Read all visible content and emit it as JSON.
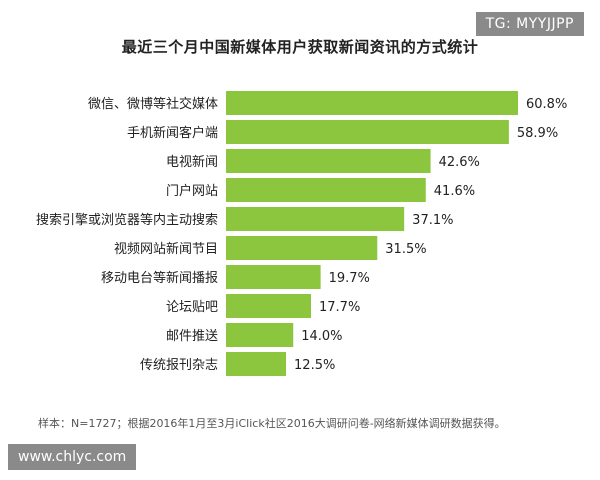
{
  "chart_data": {
    "type": "bar",
    "orientation": "horizontal",
    "title": "最近三个月中国新媒体用户获取新闻资讯的方式统计",
    "categories": [
      "微信、微博等社交媒体",
      "手机新闻客户端",
      "电视新闻",
      "门户网站",
      "搜索引擎或浏览器等内主动搜索",
      "视频网站新闻节目",
      "移动电台等新闻播报",
      "论坛贴吧",
      "邮件推送",
      "传统报刊杂志"
    ],
    "values": [
      60.8,
      58.9,
      42.6,
      41.6,
      37.1,
      31.5,
      19.7,
      17.7,
      14.0,
      12.5
    ],
    "value_labels": [
      "60.8%",
      "58.9%",
      "42.6%",
      "41.6%",
      "37.1%",
      "31.5%",
      "19.7%",
      "17.7%",
      "14.0%",
      "12.5%"
    ],
    "bar_color": "#8cc63f",
    "xlim": [
      0,
      60.8
    ]
  },
  "footnote": "样本：N=1727；根据2016年1月至3月iClick社区2016大调研问卷-网络新媒体调研数据获得。",
  "watermark_tg": "TG: MYYJJPP",
  "watermark_url": "www.chlyc.com"
}
